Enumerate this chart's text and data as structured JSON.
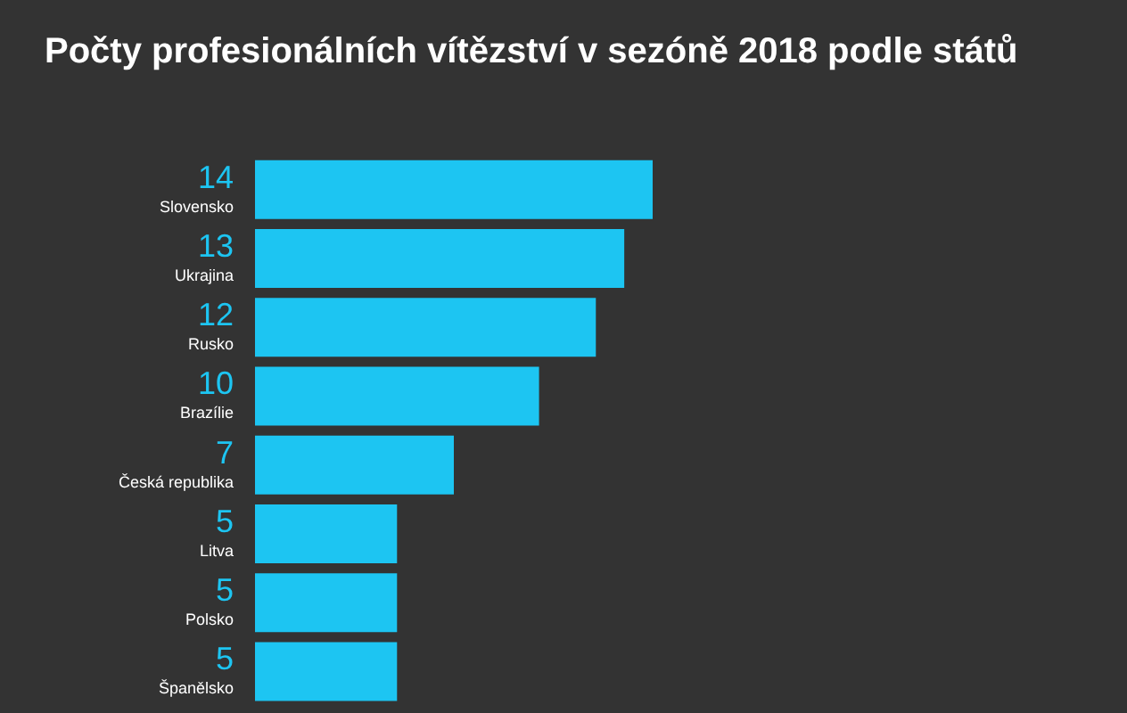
{
  "chart_data": {
    "type": "bar",
    "orientation": "horizontal",
    "title": "Počty profesionálních vítězství v sezóně 2018 podle států",
    "categories": [
      "Slovensko",
      "Ukrajina",
      "Rusko",
      "Brazílie",
      "Česká republika",
      "Litva",
      "Polsko",
      "Španělsko"
    ],
    "values": [
      14,
      13,
      12,
      10,
      7,
      5,
      5,
      5
    ],
    "color": "#1dc5f2",
    "data_labels": true
  }
}
